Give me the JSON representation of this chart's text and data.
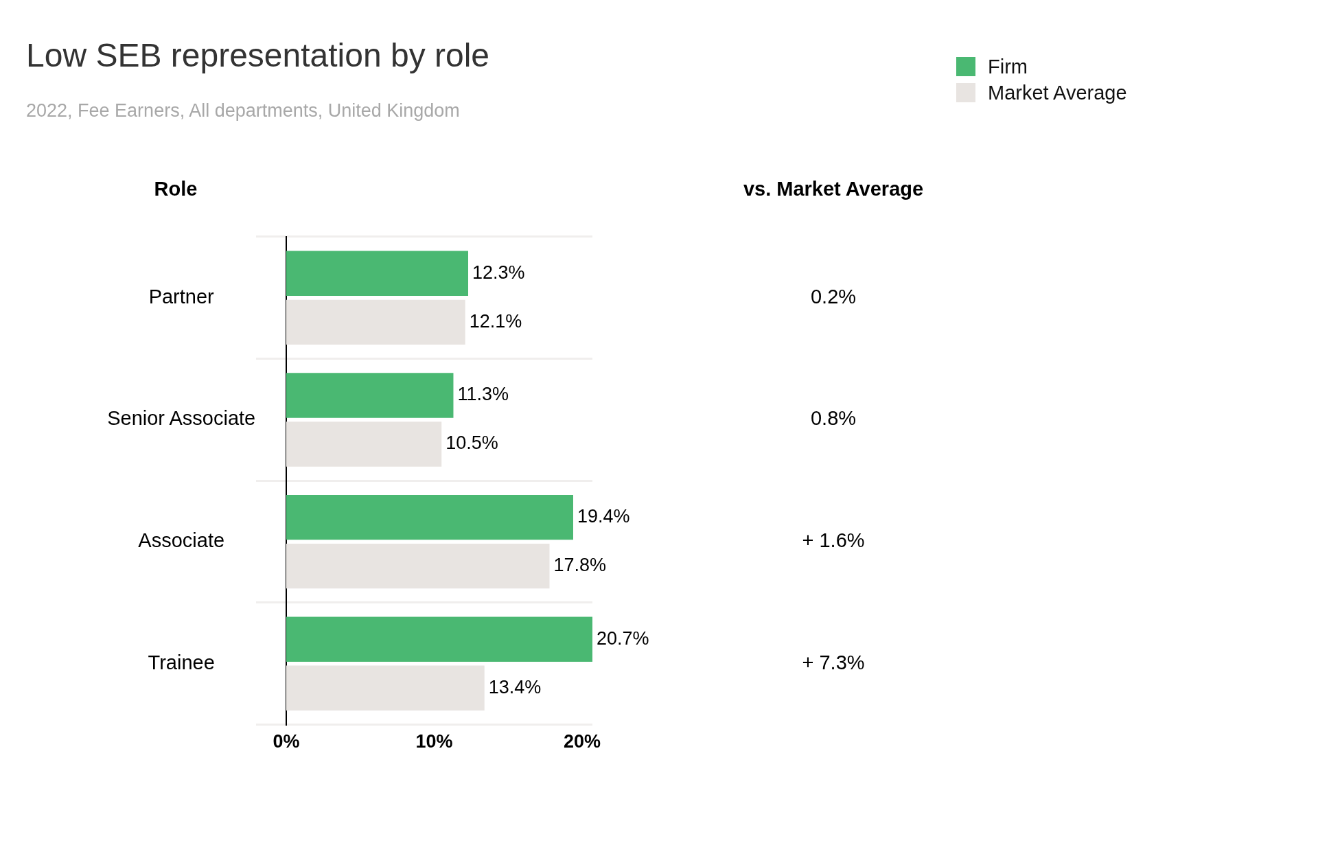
{
  "chart_data": {
    "type": "bar",
    "orientation": "horizontal",
    "title": "Low SEB representation by role",
    "subtitle": "2022, Fee Earners, All departments, United Kingdom",
    "ylabel": "Role",
    "categories": [
      "Partner",
      "Senior Associate",
      "Associate",
      "Trainee"
    ],
    "series": [
      {
        "name": "Firm",
        "color": "#4ab872",
        "values": [
          12.3,
          11.3,
          19.4,
          20.7
        ]
      },
      {
        "name": "Market Average",
        "color": "#e8e4e1",
        "values": [
          12.1,
          10.5,
          17.8,
          13.4
        ]
      }
    ],
    "xlim": [
      0,
      20.7
    ],
    "xticks": [
      {
        "value": 0,
        "label": "0%"
      },
      {
        "value": 10,
        "label": "10%"
      },
      {
        "value": 20,
        "label": "20%"
      }
    ],
    "value_labels": [
      "12.3%",
      "11.3%",
      "19.4%",
      "20.7%",
      "12.1%",
      "10.5%",
      "17.8%",
      "13.4%"
    ],
    "annotations": [
      "vs. Market Average",
      "0.2%",
      "0.8%",
      "+ 1.6%",
      "+ 7.3%"
    ],
    "grid": "y",
    "legend": "top right"
  }
}
